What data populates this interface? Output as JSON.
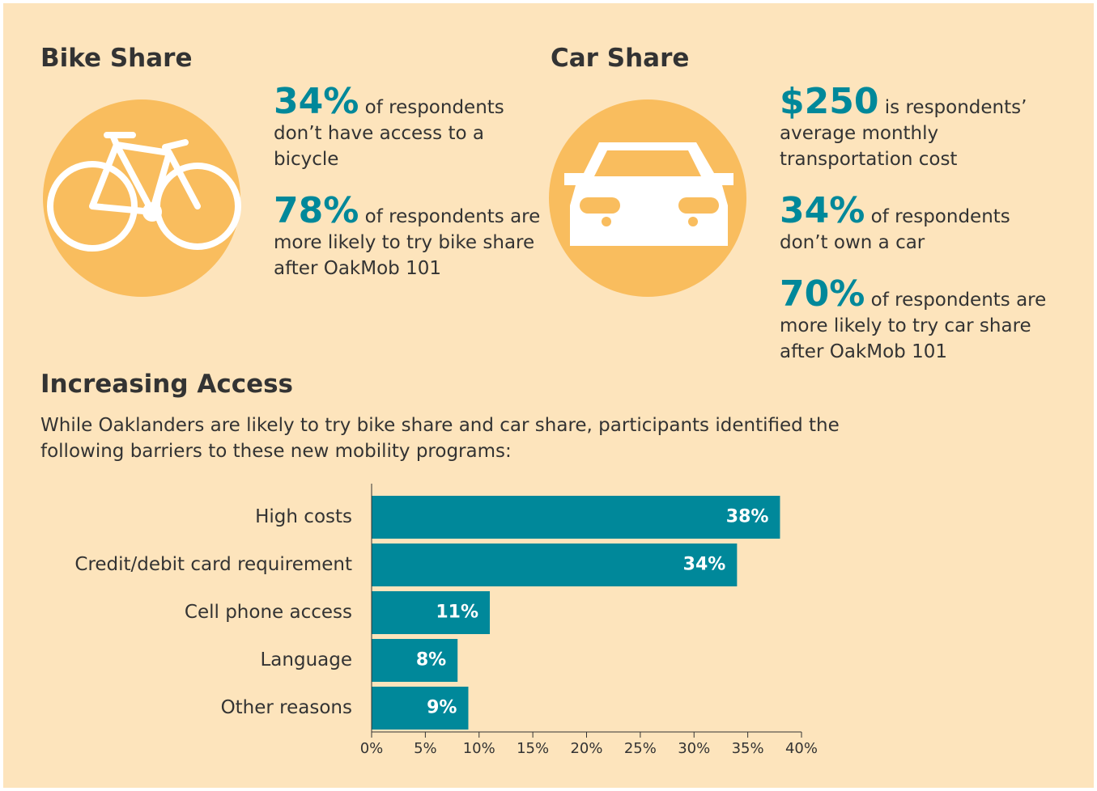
{
  "bike_share": {
    "title": "Bike Share",
    "stats": [
      {
        "figure": "34%",
        "text": "of respondents don’t have access to a bicycle"
      },
      {
        "figure": "78%",
        "text": "of respondents are more likely to try bike share after OakMob 101"
      }
    ]
  },
  "car_share": {
    "title": "Car Share",
    "stats": [
      {
        "figure": "$250",
        "text": "is respondents’ average monthly transportation cost"
      },
      {
        "figure": "34%",
        "text": "of respondents don’t own a car"
      },
      {
        "figure": "70%",
        "text": "of respondents are more likely to try car share after OakMob 101"
      }
    ]
  },
  "access": {
    "title": "Increasing Access",
    "text": "While Oaklanders are likely to try bike share and car share, participants identified the following barriers to these new mobility programs:"
  },
  "chart_data": {
    "type": "barh",
    "color": "#00889a",
    "categories": [
      "High costs",
      "Credit/debit card requirement",
      "Cell phone access",
      "Language",
      "Other reasons"
    ],
    "values": [
      38,
      34,
      11,
      8,
      9
    ],
    "value_labels": [
      "38%",
      "34%",
      "11%",
      "8%",
      "9%"
    ],
    "xlim": [
      0,
      40
    ],
    "xticks": [
      {
        "value": 0,
        "label": "0%"
      },
      {
        "value": 5,
        "label": "5%"
      },
      {
        "value": 10,
        "label": "10%"
      },
      {
        "value": 15,
        "label": "15%"
      },
      {
        "value": 20,
        "label": "20%"
      },
      {
        "value": 25,
        "label": "25%"
      },
      {
        "value": 30,
        "label": "30%"
      },
      {
        "value": 35,
        "label": "35%"
      },
      {
        "value": 40,
        "label": "40%"
      }
    ]
  }
}
